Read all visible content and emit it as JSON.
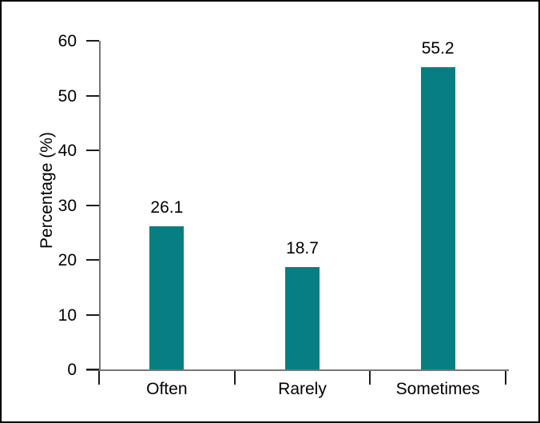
{
  "window": {
    "background_color": "#ffffff",
    "frame_color": "#000000"
  },
  "chart_data": {
    "type": "bar",
    "title": "",
    "categories": [
      "Often",
      "Rarely",
      "Sometimes"
    ],
    "values": [
      26.1,
      18.7,
      55.2
    ],
    "value_labels": [
      "26.1",
      "18.7",
      "55.2"
    ],
    "xlabel": "",
    "ylabel": "Percentage (%)",
    "ylim": [
      0,
      60
    ],
    "yticks": [
      0,
      10,
      20,
      30,
      40,
      50,
      60
    ],
    "ytick_labels": [
      "0",
      "10",
      "20",
      "30",
      "40",
      "50",
      "60"
    ],
    "grid": false,
    "legend_position": "none",
    "bar_color": "#077f82",
    "axis_color": "#767676",
    "tick_color": "#1c1c1c",
    "text_color": "#000000"
  }
}
